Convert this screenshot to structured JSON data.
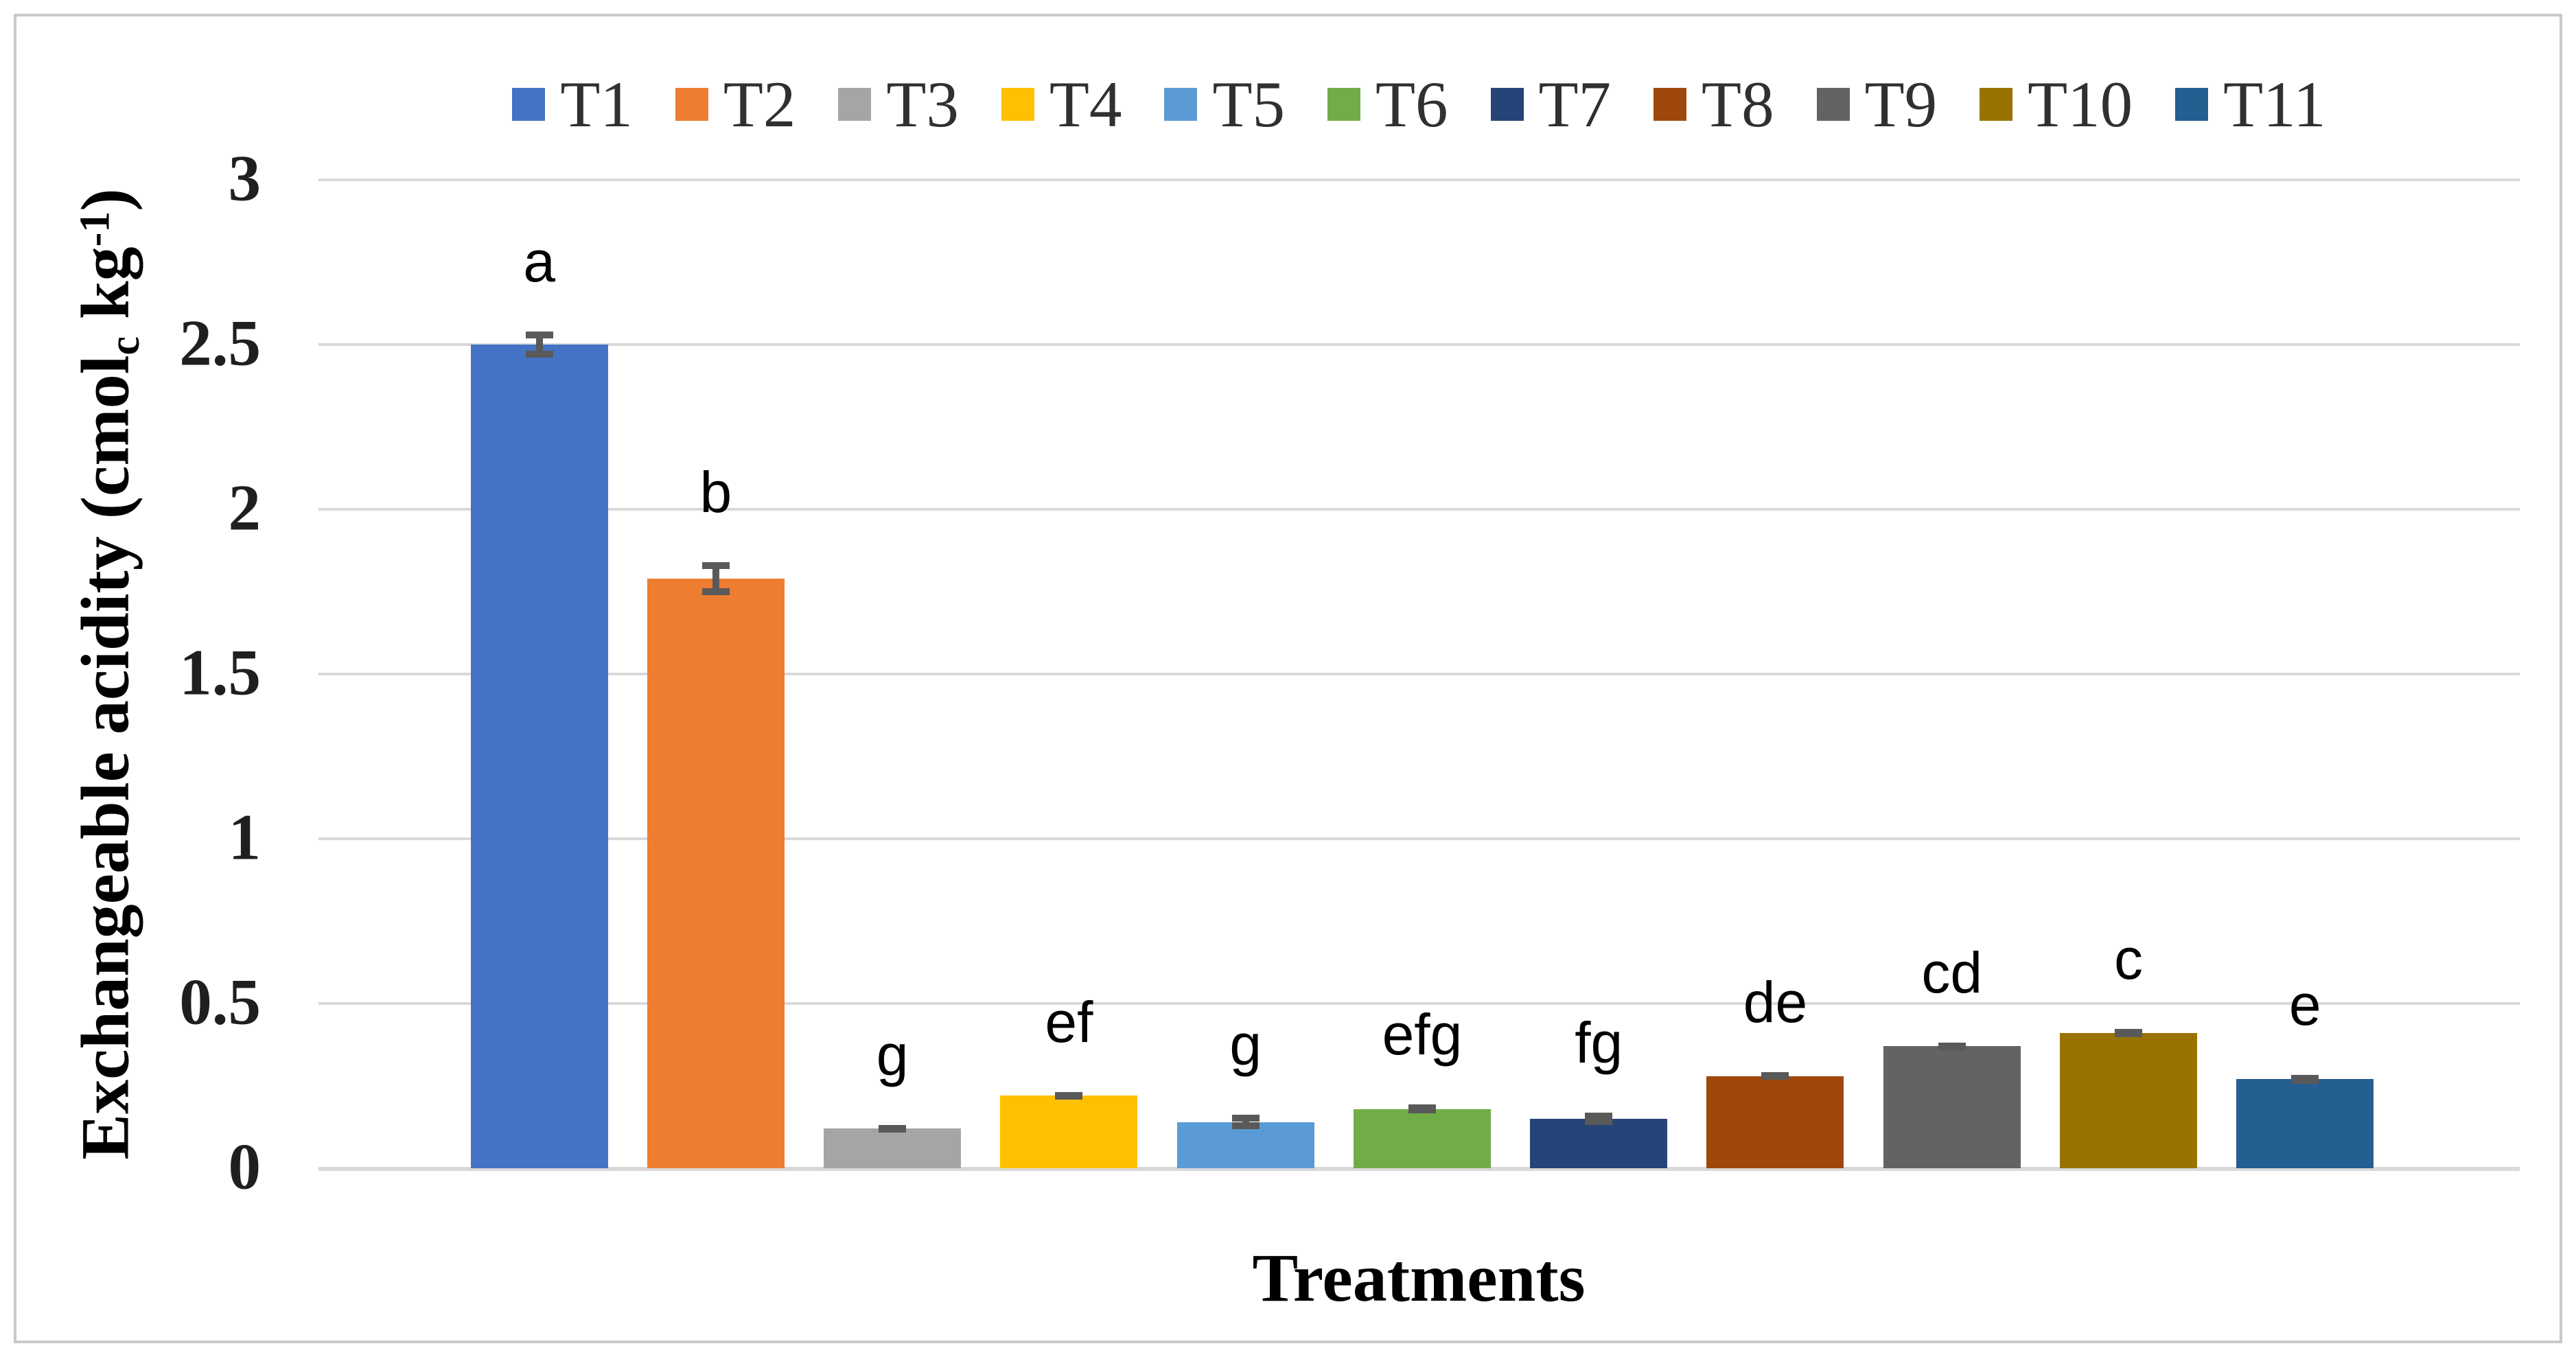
{
  "chart_data": {
    "type": "bar",
    "title": "",
    "xlabel": "Treatments",
    "ylabel": "Exchangeable acidity (cmolc kg-1)",
    "ylabel_parts": {
      "pre": "Exchangeable acidity (cmol",
      "sub": "c",
      "mid": " kg",
      "sup": "-1",
      "post": ")"
    },
    "categories": [
      "T1",
      "T2",
      "T3",
      "T4",
      "T5",
      "T6",
      "T7",
      "T8",
      "T9",
      "T10",
      "T11"
    ],
    "values": [
      2.5,
      1.79,
      0.12,
      0.22,
      0.14,
      0.18,
      0.15,
      0.28,
      0.37,
      0.41,
      0.27
    ],
    "errors": [
      0.04,
      0.05,
      0.012,
      0.012,
      0.022,
      0.013,
      0.018,
      0.012,
      0.012,
      0.012,
      0.013
    ],
    "sig_labels": [
      "a",
      "b",
      "g",
      "ef",
      "g",
      "efg",
      "fg",
      "de",
      "cd",
      "c",
      "e"
    ],
    "ylim": [
      0,
      3
    ],
    "yticks": [
      {
        "v": 0,
        "label": "0"
      },
      {
        "v": 0.5,
        "label": "0.5"
      },
      {
        "v": 1,
        "label": "1"
      },
      {
        "v": 1.5,
        "label": "1.5"
      },
      {
        "v": 2,
        "label": "2"
      },
      {
        "v": 2.5,
        "label": "2.5"
      },
      {
        "v": 3,
        "label": "3"
      }
    ],
    "grid": true,
    "legend_position": "top",
    "colors": {
      "bars": [
        "#4472C4",
        "#ED7D31",
        "#A5A5A5",
        "#FFC000",
        "#5B9BD5",
        "#70AD47",
        "#264478",
        "#9E480E",
        "#636363",
        "#997300",
        "#255E91"
      ],
      "gridline": "#D9D9D9",
      "error_bar": "#595959",
      "axis_text": "#1F1F1F",
      "legend_text": "#303030",
      "frame_border": "#C9C9C9"
    }
  }
}
